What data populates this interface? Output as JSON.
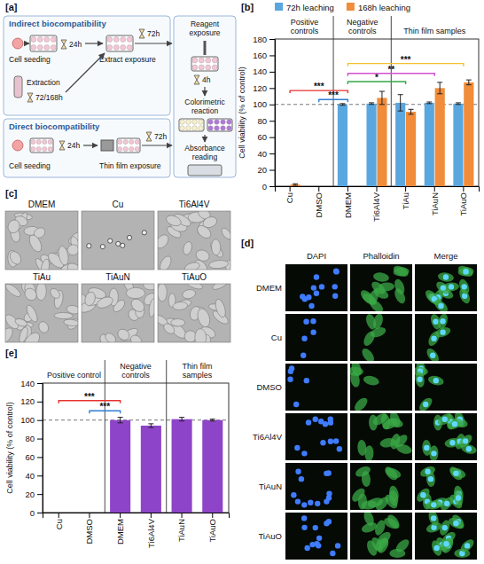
{
  "panel_letters": [
    "[a]",
    "[b]",
    "[c]",
    "[d]",
    "[e]"
  ],
  "protocol_diagram": {
    "indirect": {
      "title": "Indirect biocompatibility",
      "cell_seeding": "Cell seeding",
      "seeding_time": "24h",
      "extraction": "Extraction",
      "extraction_time": "72/168h",
      "extract_exposure": "Extract exposure",
      "exposure_time": "72h"
    },
    "direct": {
      "title": "Direct biocompatibility",
      "cell_seeding": "Cell seeding",
      "seeding_time": "24h",
      "film_exposure": "Thin film exposure",
      "exposure_time": "72h"
    },
    "assay": {
      "reagent": "Reagent exposure",
      "reaction_time": "4h",
      "reaction": "Colorimetric reaction",
      "reading": "Absorbance reading"
    }
  },
  "chart_data": [
    {
      "type": "bar",
      "y_label": "Cell viability (% of control)",
      "categories": [
        "Cu",
        "DMSO",
        "DMEM",
        "Ti6Al4V",
        "TiAu",
        "TiAuN",
        "TiAuO"
      ],
      "series": [
        {
          "name": "72h leaching",
          "color": "#5aa7e0",
          "values": [
            0,
            0,
            100,
            101,
            102,
            102,
            101
          ],
          "errors": [
            null,
            null,
            1,
            1,
            10,
            1,
            1
          ]
        },
        {
          "name": "168h leaching",
          "color": "#f08c3a",
          "values": [
            2,
            0,
            null,
            108,
            91,
            120,
            127
          ],
          "errors": [
            1,
            null,
            null,
            8,
            3,
            7,
            3
          ]
        }
      ],
      "ylim": [
        0,
        180
      ],
      "yticks": [
        0,
        20,
        40,
        60,
        80,
        100,
        120,
        140,
        160,
        180
      ],
      "legend": "top",
      "reference_line": 100,
      "groups": [
        {
          "label": "Positive controls",
          "categories": [
            "Cu",
            "DMSO"
          ]
        },
        {
          "label": "Negative controls",
          "categories": [
            "DMEM",
            "Ti6Al4V"
          ]
        },
        {
          "label": "Thin film samples",
          "categories": [
            "TiAu",
            "TiAuN",
            "TiAuO"
          ]
        }
      ],
      "significance": [
        {
          "label": "***",
          "from": "Cu",
          "to": "DMEM",
          "y": 117,
          "color": "#e5322d"
        },
        {
          "label": "***",
          "from": "DMSO",
          "to": "DMEM",
          "y": 106,
          "color": "#2f7fd4"
        },
        {
          "label": "*",
          "from": "DMEM",
          "to": "TiAu",
          "y": 128,
          "color": "#35a845"
        },
        {
          "label": "**",
          "from": "DMEM",
          "to": "TiAuN",
          "y": 138,
          "color": "#d24fd0"
        },
        {
          "label": "***",
          "from": "DMEM",
          "to": "TiAuO",
          "y": 150,
          "color": "#f2c12e"
        }
      ]
    },
    {
      "type": "bar",
      "y_label": "Cell viability (% of control)",
      "categories": [
        "Cu",
        "DMSO",
        "DMEM",
        "Ti6Al4V",
        "TiAuN",
        "TiAuO"
      ],
      "values": [
        0,
        0,
        100,
        94,
        101,
        100
      ],
      "errors": [
        null,
        null,
        3,
        2,
        2,
        1
      ],
      "color": "#8e44c8",
      "ylim": [
        0,
        140
      ],
      "yticks": [
        0,
        20,
        40,
        60,
        80,
        100,
        120,
        140
      ],
      "reference_line": 100,
      "groups": [
        {
          "label": "Positive control",
          "categories": [
            "Cu",
            "DMSO"
          ]
        },
        {
          "label": "Negative controls",
          "categories": [
            "DMEM",
            "Ti6Al4V"
          ]
        },
        {
          "label": "Thin film samples",
          "categories": [
            "TiAuN",
            "TiAuO"
          ]
        }
      ],
      "significance": [
        {
          "label": "***",
          "from": "Cu",
          "to": "DMEM",
          "y": 121,
          "color": "#e5322d"
        },
        {
          "label": "***",
          "from": "DMSO",
          "to": "DMEM",
          "y": 110,
          "color": "#2f7fd4"
        }
      ]
    }
  ],
  "micrographs": {
    "labels": [
      "DMEM",
      "Cu",
      "Ti6Al4V",
      "TiAu",
      "TiAuN",
      "TiAuO"
    ]
  },
  "fluorescence": {
    "columns": [
      "DAPI",
      "Phalloidin",
      "Merge"
    ],
    "rows": [
      "DMEM",
      "Cu",
      "DMSO",
      "Ti6Al4V",
      "TiAuN",
      "TiAuO"
    ]
  }
}
